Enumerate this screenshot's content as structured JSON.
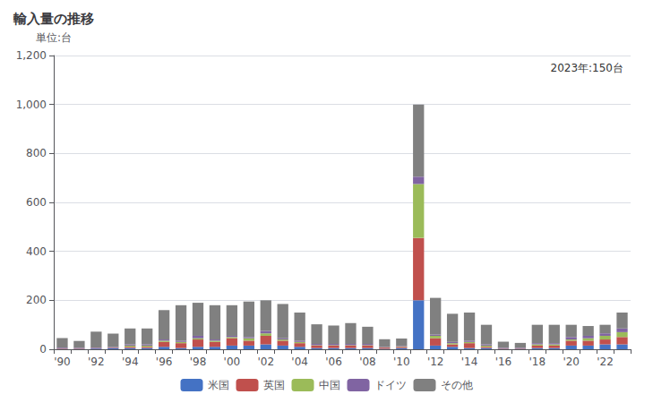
{
  "chart_data": {
    "type": "bar",
    "stacked": true,
    "title": "輸入量の推移",
    "ylabel": "単位:台",
    "annotations": [
      "2023年:150台"
    ],
    "categories": [
      "'90",
      null,
      "'92",
      null,
      "'94",
      null,
      "'96",
      null,
      "'98",
      null,
      "'00",
      null,
      "'02",
      null,
      "'04",
      null,
      "'06",
      null,
      "'08",
      null,
      "'10",
      null,
      "'12",
      null,
      "'14",
      null,
      "'16",
      null,
      "'18",
      null,
      "'20",
      null,
      "'22",
      null
    ],
    "series": [
      {
        "name": "米国",
        "color": "#4472c4",
        "values": [
          2,
          2,
          3,
          5,
          5,
          5,
          10,
          5,
          10,
          10,
          15,
          15,
          20,
          15,
          10,
          5,
          5,
          5,
          5,
          2,
          5,
          200,
          15,
          10,
          5,
          5,
          2,
          2,
          5,
          5,
          15,
          15,
          20,
          20
        ]
      },
      {
        "name": "英国",
        "color": "#c0504d",
        "values": [
          2,
          2,
          2,
          2,
          5,
          5,
          20,
          20,
          30,
          20,
          30,
          20,
          35,
          20,
          15,
          10,
          10,
          10,
          10,
          5,
          5,
          255,
          30,
          10,
          20,
          5,
          2,
          2,
          10,
          10,
          20,
          20,
          20,
          30
        ]
      },
      {
        "name": "中国",
        "color": "#9bbb59",
        "values": [
          0,
          0,
          0,
          0,
          5,
          5,
          5,
          5,
          5,
          5,
          5,
          10,
          10,
          5,
          5,
          2,
          2,
          2,
          2,
          2,
          2,
          220,
          10,
          5,
          5,
          5,
          0,
          0,
          5,
          5,
          5,
          10,
          15,
          20
        ]
      },
      {
        "name": "ドイツ",
        "color": "#8064a2",
        "values": [
          2,
          2,
          2,
          2,
          5,
          5,
          5,
          5,
          10,
          5,
          5,
          5,
          10,
          5,
          5,
          5,
          5,
          5,
          5,
          2,
          2,
          30,
          5,
          5,
          5,
          5,
          2,
          2,
          5,
          5,
          10,
          10,
          10,
          15
        ]
      },
      {
        "name": "その他",
        "color": "#808080",
        "values": [
          40,
          28,
          65,
          55,
          65,
          65,
          120,
          145,
          135,
          140,
          125,
          145,
          125,
          140,
          115,
          80,
          75,
          85,
          70,
          30,
          30,
          295,
          150,
          115,
          115,
          80,
          25,
          20,
          75,
          75,
          50,
          40,
          35,
          65
        ]
      }
    ],
    "ylim": [
      0,
      1200
    ],
    "yticks": [
      0,
      200,
      400,
      600,
      800,
      {
        "value": 1000,
        "label": "1,000"
      },
      {
        "value": 1200,
        "label": "1,200"
      }
    ],
    "grid": true,
    "legend": "bottom"
  }
}
